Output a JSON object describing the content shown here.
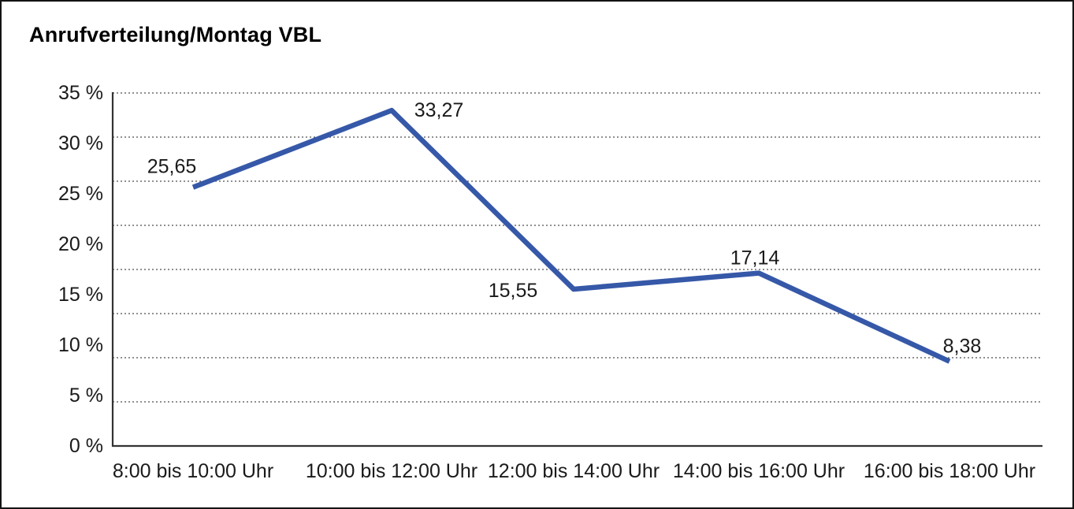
{
  "window": {
    "background": "#ffffff",
    "border_color": "#141414"
  },
  "chart_data": {
    "type": "line",
    "title": "Anrufverteilung/Montag VBL",
    "categories": [
      "8:00 bis 10:00 Uhr",
      "10:00 bis 12:00 Uhr",
      "12:00 bis 14:00 Uhr",
      "14:00 bis 16:00 Uhr",
      "16:00 bis 18:00 Uhr"
    ],
    "values": [
      25.65,
      33.27,
      15.55,
      17.14,
      8.38
    ],
    "data_labels": [
      "25,65",
      "33,27",
      "15,55",
      "17,14",
      "8,38"
    ],
    "data_label_positions": [
      "above-left",
      "right",
      "left",
      "above",
      "above-right"
    ],
    "y_ticks": [
      "35 %",
      "30 %",
      "25 %",
      "20 %",
      "15 %",
      "10 %",
      "5 %",
      "0 %"
    ],
    "ylim": [
      0,
      35
    ],
    "y_tick_step": 5,
    "gridline_divisions": 8,
    "grid": "dotted-horizontal",
    "legend": "none",
    "xlabel": "",
    "ylabel": "",
    "line_color": "#3658a8",
    "axis_color": "#333333",
    "gridline_color": "#4d4d4d",
    "text_color": "#1a1a1a"
  }
}
